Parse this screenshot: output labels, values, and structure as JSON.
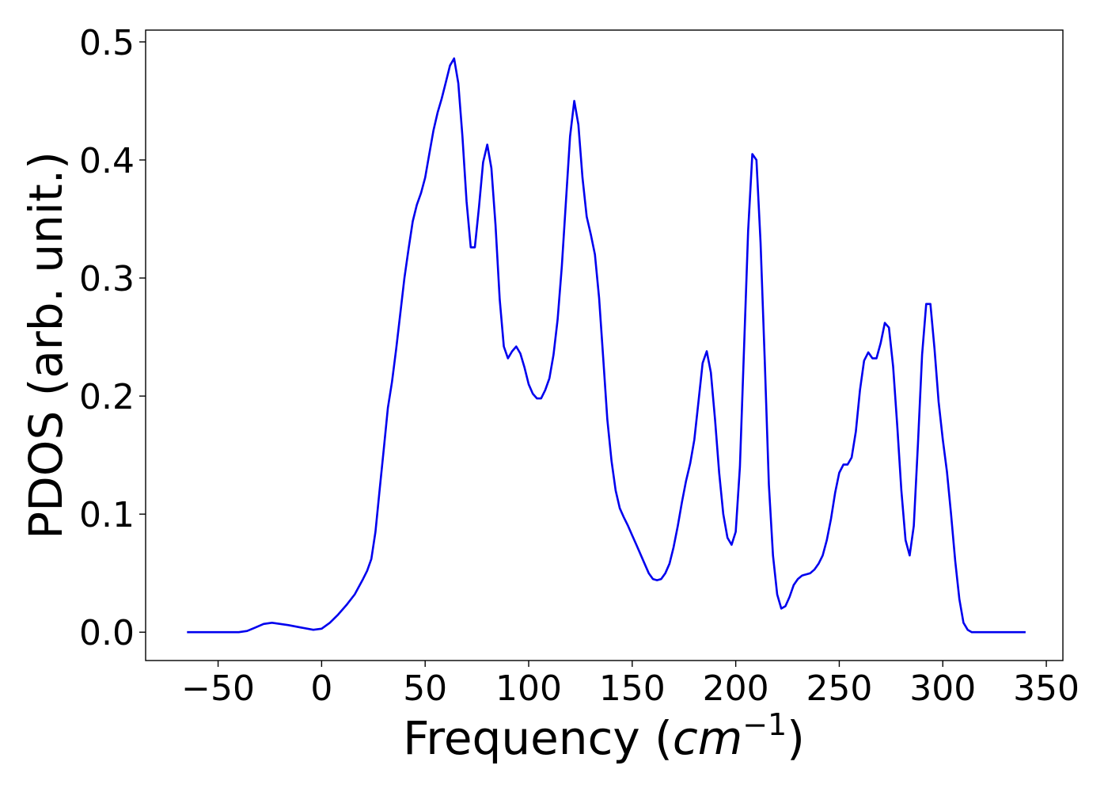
{
  "chart_data": {
    "type": "line",
    "title": "",
    "xlabel": "Frequency (",
    "xlabel_math": "cm",
    "xlabel_sup": "−1",
    "xlabel_end": ")",
    "ylabel": "PDOS (arb. unit.)",
    "xlim": [
      -85,
      358
    ],
    "ylim": [
      -0.024,
      0.51
    ],
    "xticks": [
      -50,
      0,
      50,
      100,
      150,
      200,
      250,
      300,
      350
    ],
    "xtick_labels": [
      "−50",
      "0",
      "50",
      "100",
      "150",
      "200",
      "250",
      "300",
      "350"
    ],
    "yticks": [
      0.0,
      0.1,
      0.2,
      0.3,
      0.4,
      0.5
    ],
    "ytick_labels": [
      "0.0",
      "0.1",
      "0.2",
      "0.3",
      "0.4",
      "0.5"
    ],
    "grid": false,
    "legend": "none",
    "color": "#0000ee",
    "series": [
      {
        "x": [
          -65,
          -40,
          -36,
          -32,
          -28,
          -24,
          -20,
          -16,
          -10,
          -4,
          0,
          4,
          8,
          12,
          16,
          20,
          22,
          24,
          26,
          28,
          30,
          32,
          34,
          36,
          38,
          40,
          42,
          44,
          46,
          48,
          50,
          52,
          54,
          56,
          58,
          60,
          62,
          64,
          66,
          68,
          70,
          72,
          74,
          76,
          78,
          80,
          82,
          84,
          86,
          88,
          90,
          92,
          94,
          96,
          98,
          100,
          102,
          104,
          106,
          108,
          110,
          112,
          114,
          116,
          118,
          120,
          122,
          124,
          126,
          128,
          130,
          132,
          134,
          136,
          138,
          140,
          142,
          144,
          146,
          148,
          150,
          152,
          154,
          156,
          158,
          160,
          162,
          164,
          166,
          168,
          170,
          172,
          174,
          176,
          178,
          180,
          182,
          184,
          186,
          188,
          190,
          192,
          194,
          196,
          198,
          200,
          202,
          204,
          206,
          208,
          210,
          212,
          214,
          216,
          218,
          220,
          222,
          224,
          226,
          228,
          230,
          232,
          234,
          236,
          238,
          240,
          242,
          244,
          246,
          248,
          250,
          252,
          254,
          256,
          258,
          260,
          262,
          264,
          266,
          268,
          270,
          272,
          274,
          276,
          278,
          280,
          282,
          284,
          286,
          288,
          290,
          292,
          294,
          296,
          298,
          300,
          302,
          304,
          306,
          308,
          310,
          312,
          314,
          316,
          320,
          340
        ],
        "y": [
          0.0,
          0.0,
          0.001,
          0.004,
          0.007,
          0.008,
          0.007,
          0.006,
          0.004,
          0.002,
          0.003,
          0.008,
          0.015,
          0.023,
          0.032,
          0.045,
          0.052,
          0.062,
          0.085,
          0.12,
          0.155,
          0.19,
          0.212,
          0.24,
          0.27,
          0.3,
          0.325,
          0.348,
          0.362,
          0.372,
          0.385,
          0.405,
          0.425,
          0.44,
          0.452,
          0.466,
          0.48,
          0.486,
          0.465,
          0.42,
          0.365,
          0.326,
          0.326,
          0.36,
          0.398,
          0.413,
          0.393,
          0.345,
          0.282,
          0.242,
          0.232,
          0.238,
          0.242,
          0.236,
          0.224,
          0.21,
          0.202,
          0.198,
          0.198,
          0.205,
          0.215,
          0.235,
          0.265,
          0.31,
          0.365,
          0.42,
          0.45,
          0.43,
          0.385,
          0.352,
          0.337,
          0.32,
          0.283,
          0.232,
          0.18,
          0.145,
          0.12,
          0.105,
          0.097,
          0.09,
          0.082,
          0.074,
          0.066,
          0.058,
          0.05,
          0.045,
          0.044,
          0.045,
          0.05,
          0.058,
          0.072,
          0.09,
          0.11,
          0.128,
          0.143,
          0.163,
          0.195,
          0.228,
          0.238,
          0.22,
          0.18,
          0.135,
          0.1,
          0.08,
          0.074,
          0.085,
          0.14,
          0.24,
          0.34,
          0.405,
          0.4,
          0.33,
          0.23,
          0.125,
          0.065,
          0.032,
          0.02,
          0.022,
          0.03,
          0.04,
          0.045,
          0.048,
          0.049,
          0.05,
          0.053,
          0.058,
          0.065,
          0.078,
          0.096,
          0.118,
          0.135,
          0.142,
          0.142,
          0.148,
          0.17,
          0.205,
          0.23,
          0.237,
          0.232,
          0.232,
          0.245,
          0.262,
          0.258,
          0.225,
          0.175,
          0.12,
          0.078,
          0.065,
          0.09,
          0.16,
          0.235,
          0.278,
          0.278,
          0.24,
          0.195,
          0.163,
          0.136,
          0.1,
          0.06,
          0.028,
          0.008,
          0.002,
          0.0,
          0.0,
          0.0,
          0.0
        ]
      }
    ]
  }
}
